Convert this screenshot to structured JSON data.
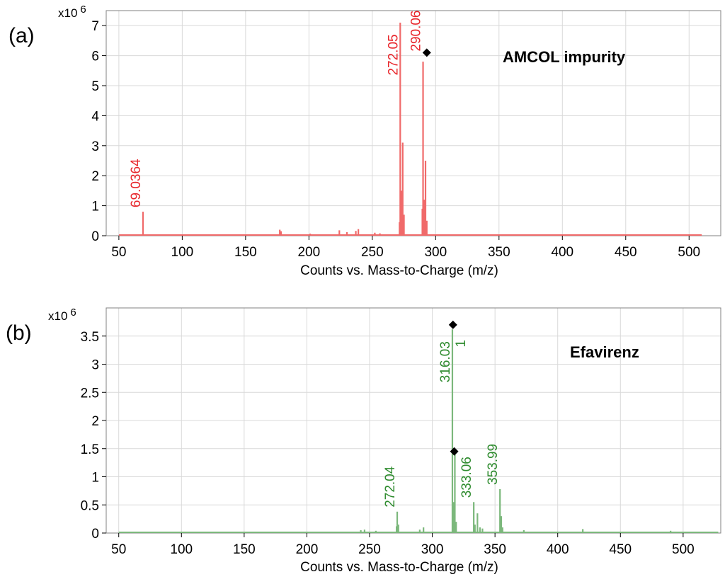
{
  "chart_data": [
    {
      "type": "bar",
      "panel_label": "(a)",
      "annotation": "AMCOL impurity",
      "xlabel": "Counts vs. Mass-to-Charge (m/z)",
      "y_multiplier": "x10",
      "y_multiplier_exp": "6",
      "xlim": [
        40,
        525
      ],
      "ylim": [
        0,
        7.5
      ],
      "x_ticks": [
        50,
        100,
        150,
        200,
        250,
        300,
        350,
        400,
        450,
        500
      ],
      "y_ticks": [
        0,
        1,
        2,
        3,
        4,
        5,
        6,
        7
      ],
      "grid": true,
      "color": "#f06a6a",
      "label_color": "#e8262b",
      "baseline_range": [
        50,
        510
      ],
      "peaks": [
        {
          "x": 69.04,
          "y": 0.8
        },
        {
          "x": 177.0,
          "y": 0.2
        },
        {
          "x": 178.0,
          "y": 0.15
        },
        {
          "x": 201.0,
          "y": 0.07
        },
        {
          "x": 224.0,
          "y": 0.18
        },
        {
          "x": 230.0,
          "y": 0.12
        },
        {
          "x": 237.0,
          "y": 0.16
        },
        {
          "x": 239.0,
          "y": 0.22
        },
        {
          "x": 252.0,
          "y": 0.1
        },
        {
          "x": 256.0,
          "y": 0.08
        },
        {
          "x": 271.5,
          "y": 0.45
        },
        {
          "x": 272.05,
          "y": 7.1
        },
        {
          "x": 273.0,
          "y": 1.5
        },
        {
          "x": 274.0,
          "y": 3.1
        },
        {
          "x": 275.0,
          "y": 0.7
        },
        {
          "x": 289.5,
          "y": 0.9
        },
        {
          "x": 290.06,
          "y": 5.8
        },
        {
          "x": 291.0,
          "y": 1.2
        },
        {
          "x": 292.0,
          "y": 2.5
        },
        {
          "x": 293.0,
          "y": 0.5
        }
      ],
      "peak_labels": [
        {
          "x": 69.04,
          "y": 0.8,
          "text": "69.0364"
        },
        {
          "x": 272.05,
          "y": 5.2,
          "text": "272.05"
        },
        {
          "x": 290.06,
          "y": 6.0,
          "text": "290.06"
        }
      ],
      "markers": [
        {
          "x": 293.0,
          "y": 6.1
        }
      ]
    },
    {
      "type": "bar",
      "panel_label": "(b)",
      "annotation": "Efavirenz",
      "xlabel": "Counts vs. Mass-to-Charge (m/z)",
      "y_multiplier": "x10",
      "y_multiplier_exp": "6",
      "xlim": [
        40,
        530
      ],
      "ylim": [
        0,
        4.0
      ],
      "x_ticks": [
        50,
        100,
        150,
        200,
        250,
        300,
        350,
        400,
        450,
        500
      ],
      "x_tick_labels": [
        "50",
        "100",
        "150",
        "200",
        "250",
        "300",
        "350",
        "400",
        "450",
        "500"
      ],
      "y_ticks": [
        0,
        0.5,
        1,
        1.5,
        2,
        2.5,
        3,
        3.5
      ],
      "y_tick_labels": [
        "0",
        "0.5",
        "1",
        "1.5",
        "2",
        "2.5",
        "3",
        "3.5"
      ],
      "grid": true,
      "color": "#7cb87c",
      "label_color": "#2e8b2e",
      "baseline_range": [
        50,
        528
      ],
      "peaks": [
        {
          "x": 243.0,
          "y": 0.05
        },
        {
          "x": 246.0,
          "y": 0.06
        },
        {
          "x": 255.0,
          "y": 0.04
        },
        {
          "x": 271.5,
          "y": 0.12
        },
        {
          "x": 272.04,
          "y": 0.38
        },
        {
          "x": 273.0,
          "y": 0.15
        },
        {
          "x": 290.0,
          "y": 0.06
        },
        {
          "x": 293.0,
          "y": 0.1
        },
        {
          "x": 316.03,
          "y": 3.62
        },
        {
          "x": 317.0,
          "y": 0.55
        },
        {
          "x": 318.0,
          "y": 1.4
        },
        {
          "x": 319.0,
          "y": 0.2
        },
        {
          "x": 333.06,
          "y": 0.55
        },
        {
          "x": 334.0,
          "y": 0.15
        },
        {
          "x": 336.0,
          "y": 0.35
        },
        {
          "x": 338.0,
          "y": 0.1
        },
        {
          "x": 340.0,
          "y": 0.08
        },
        {
          "x": 353.99,
          "y": 0.78
        },
        {
          "x": 355.0,
          "y": 0.3
        },
        {
          "x": 356.0,
          "y": 0.1
        },
        {
          "x": 373.0,
          "y": 0.05
        },
        {
          "x": 420.0,
          "y": 0.07
        },
        {
          "x": 490.0,
          "y": 0.04
        }
      ],
      "peak_labels": [
        {
          "x": 272.04,
          "y": 0.38,
          "text": "272.04"
        },
        {
          "x": 316.03,
          "y": 2.6,
          "text": "316.03"
        },
        {
          "x": 333.06,
          "y": 0.55,
          "text": "333.06"
        },
        {
          "x": 353.99,
          "y": 0.78,
          "text": "353.99"
        }
      ],
      "peak_sublabels": [
        {
          "x": 316.03,
          "y": 3.3,
          "text": "1"
        }
      ],
      "markers": [
        {
          "x": 316.5,
          "y": 3.7
        },
        {
          "x": 317.5,
          "y": 1.45
        }
      ]
    }
  ]
}
